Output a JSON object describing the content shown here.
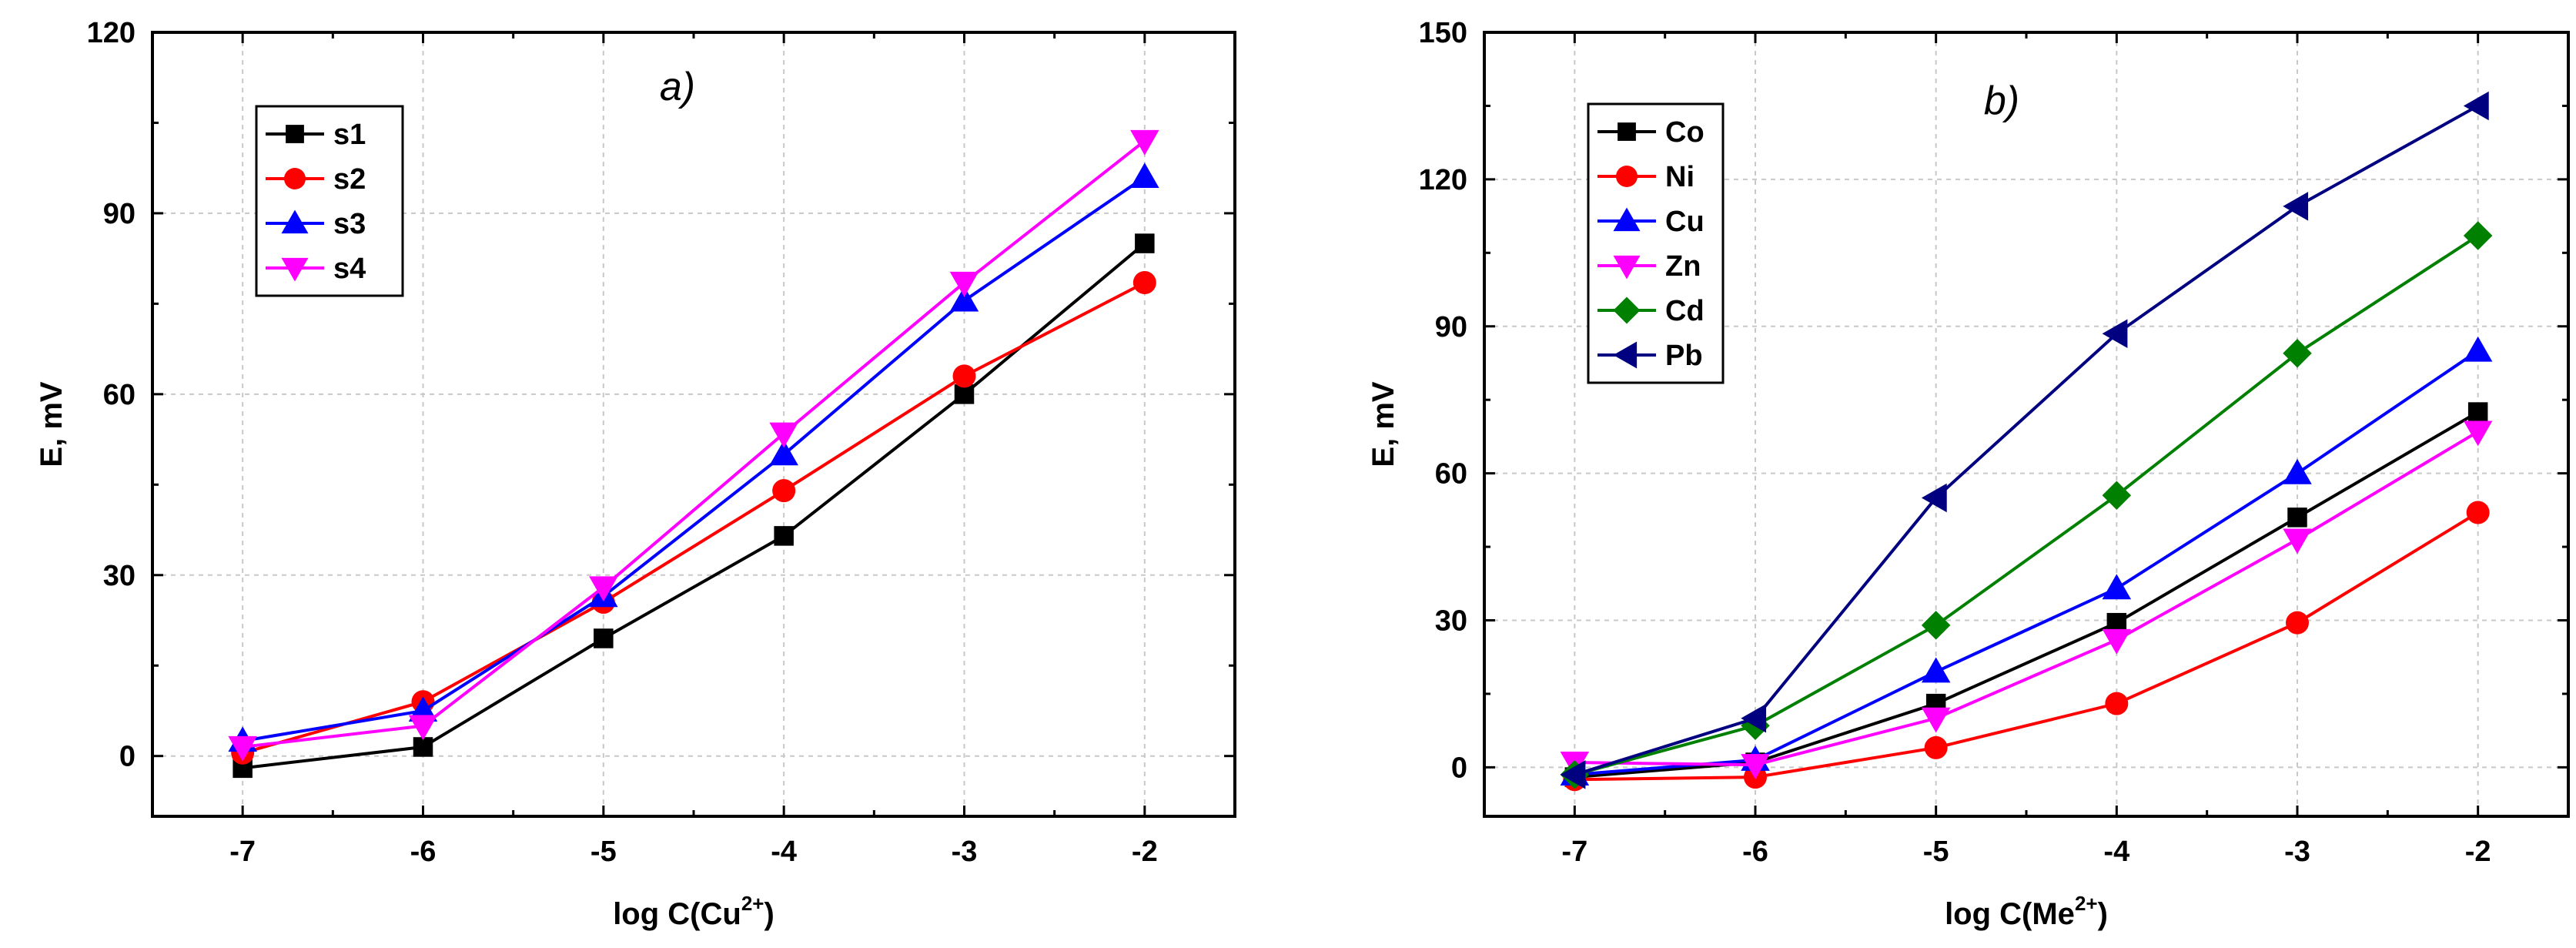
{
  "chart_data": [
    {
      "type": "line",
      "panel_label": "a)",
      "xlabel": {
        "prefix": "log C(Cu",
        "sup": "2+",
        "suffix": ")"
      },
      "ylabel": "E, mV",
      "x": [
        -7,
        -6,
        -5,
        -4,
        -3,
        -2
      ],
      "xticks": [
        "-7",
        "-6",
        "-5",
        "-4",
        "-3",
        "-2"
      ],
      "xlim": [
        -7.5,
        -1.5
      ],
      "ylim": [
        -10,
        120
      ],
      "yticks": [
        0,
        30,
        60,
        90,
        120
      ],
      "grid": true,
      "legend_position": "top-left",
      "series": [
        {
          "name": "s1",
          "color": "#000000",
          "marker": "square",
          "values": [
            -2,
            1.5,
            19.5,
            36.5,
            60,
            85
          ]
        },
        {
          "name": "s2",
          "color": "#ff0000",
          "marker": "circle",
          "values": [
            0.5,
            9,
            25.5,
            44,
            63,
            78.5
          ]
        },
        {
          "name": "s3",
          "color": "#0000ff",
          "marker": "triangle-up",
          "values": [
            2.5,
            7.5,
            26.5,
            50,
            75.5,
            96
          ]
        },
        {
          "name": "s4",
          "color": "#ff00ff",
          "marker": "triangle-down",
          "values": [
            1.5,
            5,
            28,
            53.5,
            78.5,
            102
          ]
        }
      ]
    },
    {
      "type": "line",
      "panel_label": "b)",
      "xlabel": {
        "prefix": "log C(Me",
        "sup": "2+",
        "suffix": ")"
      },
      "ylabel": "E, mV",
      "x": [
        -7,
        -6,
        -5,
        -4,
        -3,
        -2
      ],
      "xticks": [
        "-7",
        "-6",
        "-5",
        "-4",
        "-3",
        "-2"
      ],
      "xlim": [
        -7.5,
        -1.5
      ],
      "ylim": [
        -10,
        150
      ],
      "yticks": [
        0,
        30,
        60,
        90,
        120,
        150
      ],
      "grid": true,
      "legend_position": "top-left",
      "series": [
        {
          "name": "Co",
          "color": "#000000",
          "marker": "square",
          "values": [
            -2,
            1,
            13,
            29.5,
            51,
            72.5
          ]
        },
        {
          "name": "Ni",
          "color": "#ff0000",
          "marker": "circle",
          "values": [
            -2.5,
            -2,
            4,
            13,
            29.5,
            52
          ]
        },
        {
          "name": "Cu",
          "color": "#0000ff",
          "marker": "triangle-up",
          "values": [
            -1.5,
            1.5,
            19.5,
            36.5,
            60,
            85
          ]
        },
        {
          "name": "Zn",
          "color": "#ff00ff",
          "marker": "triangle-down",
          "values": [
            1,
            0.5,
            10,
            26,
            46.5,
            68.5
          ]
        },
        {
          "name": "Cd",
          "color": "#008000",
          "marker": "diamond",
          "values": [
            -1.5,
            8.5,
            29,
            55.5,
            84.5,
            108.5
          ]
        },
        {
          "name": "Pb",
          "color": "#000080",
          "marker": "triangle-left",
          "values": [
            -1.5,
            10,
            55,
            88.5,
            114.5,
            135
          ]
        }
      ]
    }
  ]
}
